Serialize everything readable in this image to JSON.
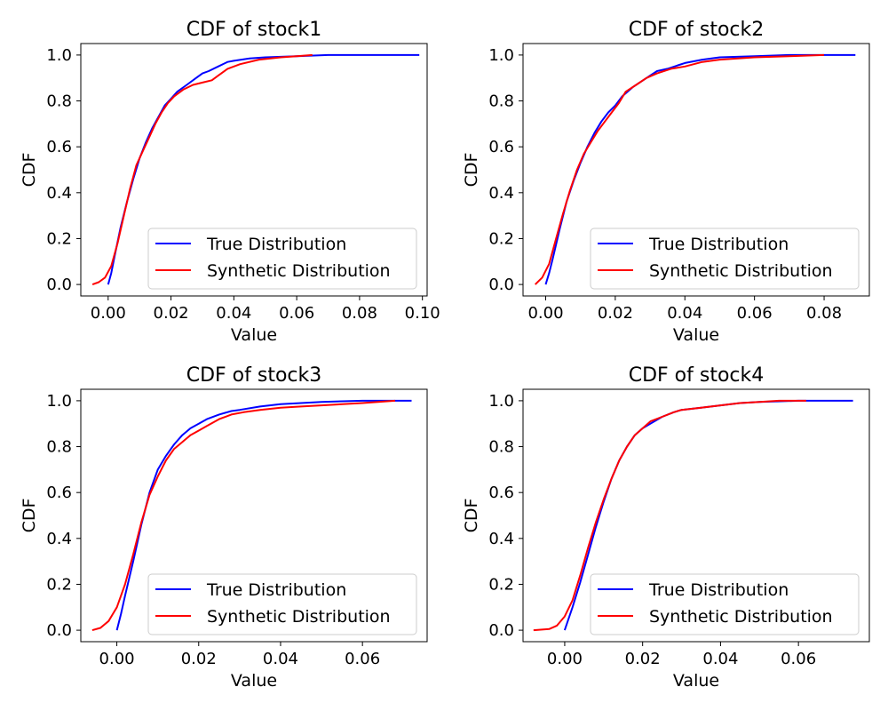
{
  "chart_data": [
    {
      "type": "line",
      "title": "CDF of stock1",
      "xlabel": "Value",
      "ylabel": "CDF",
      "xlim": [
        -0.0087,
        0.1015
      ],
      "ylim": [
        -0.05,
        1.05
      ],
      "xticks": [
        "0.00",
        "0.02",
        "0.04",
        "0.06",
        "0.08",
        "0.10"
      ],
      "xtick_values": [
        0.0,
        0.02,
        0.04,
        0.06,
        0.08,
        0.1
      ],
      "yticks": [
        "0.0",
        "0.2",
        "0.4",
        "0.6",
        "0.8",
        "1.0"
      ],
      "ytick_values": [
        0.0,
        0.2,
        0.4,
        0.6,
        0.8,
        1.0
      ],
      "legend": {
        "position": "lower right"
      },
      "grid": false,
      "series": [
        {
          "name": "True Distribution",
          "color": "#0000ff",
          "x": [
            0.0,
            0.001,
            0.002,
            0.004,
            0.006,
            0.008,
            0.01,
            0.012,
            0.014,
            0.016,
            0.018,
            0.02,
            0.022,
            0.025,
            0.028,
            0.03,
            0.032,
            0.035,
            0.038,
            0.04,
            0.045,
            0.05,
            0.06,
            0.07,
            0.08,
            0.09,
            0.099
          ],
          "y": [
            0.0,
            0.05,
            0.12,
            0.25,
            0.36,
            0.46,
            0.55,
            0.62,
            0.68,
            0.73,
            0.78,
            0.81,
            0.84,
            0.87,
            0.9,
            0.92,
            0.93,
            0.95,
            0.97,
            0.975,
            0.985,
            0.99,
            0.995,
            1.0,
            1.0,
            1.0,
            1.0
          ]
        },
        {
          "name": "Synthetic Distribution",
          "color": "#ff0000",
          "x": [
            -0.005,
            -0.003,
            -0.001,
            0.001,
            0.003,
            0.005,
            0.007,
            0.009,
            0.011,
            0.013,
            0.015,
            0.017,
            0.019,
            0.021,
            0.024,
            0.027,
            0.03,
            0.033,
            0.035,
            0.038,
            0.042,
            0.048,
            0.055,
            0.06,
            0.065
          ],
          "y": [
            0.0,
            0.01,
            0.03,
            0.08,
            0.18,
            0.3,
            0.42,
            0.52,
            0.58,
            0.64,
            0.7,
            0.75,
            0.79,
            0.82,
            0.85,
            0.87,
            0.88,
            0.89,
            0.91,
            0.94,
            0.96,
            0.98,
            0.99,
            0.995,
            1.0
          ]
        }
      ]
    },
    {
      "type": "line",
      "title": "CDF of stock2",
      "xlabel": "Value",
      "ylabel": "CDF",
      "xlim": [
        -0.0065,
        0.093
      ],
      "ylim": [
        -0.05,
        1.05
      ],
      "xticks": [
        "0.00",
        "0.02",
        "0.04",
        "0.06",
        "0.08"
      ],
      "xtick_values": [
        0.0,
        0.02,
        0.04,
        0.06,
        0.08
      ],
      "yticks": [
        "0.0",
        "0.2",
        "0.4",
        "0.6",
        "0.8",
        "1.0"
      ],
      "ytick_values": [
        0.0,
        0.2,
        0.4,
        0.6,
        0.8,
        1.0
      ],
      "legend": {
        "position": "lower right"
      },
      "grid": false,
      "series": [
        {
          "name": "True Distribution",
          "color": "#0000ff",
          "x": [
            0.0,
            0.001,
            0.002,
            0.004,
            0.006,
            0.008,
            0.01,
            0.012,
            0.014,
            0.016,
            0.018,
            0.02,
            0.022,
            0.025,
            0.028,
            0.03,
            0.032,
            0.035,
            0.038,
            0.04,
            0.045,
            0.05,
            0.06,
            0.07,
            0.08,
            0.089
          ],
          "y": [
            0.0,
            0.05,
            0.11,
            0.24,
            0.36,
            0.45,
            0.53,
            0.6,
            0.66,
            0.71,
            0.75,
            0.78,
            0.82,
            0.86,
            0.89,
            0.91,
            0.93,
            0.94,
            0.955,
            0.965,
            0.98,
            0.99,
            0.995,
            1.0,
            1.0,
            1.0
          ]
        },
        {
          "name": "Synthetic Distribution",
          "color": "#ff0000",
          "x": [
            -0.003,
            -0.001,
            0.001,
            0.003,
            0.005,
            0.007,
            0.009,
            0.011,
            0.013,
            0.015,
            0.017,
            0.019,
            0.021,
            0.023,
            0.026,
            0.029,
            0.032,
            0.036,
            0.04,
            0.045,
            0.05,
            0.06,
            0.07,
            0.08
          ],
          "y": [
            0.0,
            0.03,
            0.09,
            0.2,
            0.31,
            0.41,
            0.5,
            0.57,
            0.62,
            0.67,
            0.71,
            0.75,
            0.79,
            0.84,
            0.87,
            0.9,
            0.92,
            0.94,
            0.95,
            0.97,
            0.98,
            0.99,
            0.995,
            1.0
          ]
        }
      ]
    },
    {
      "type": "line",
      "title": "CDF of stock3",
      "xlabel": "Value",
      "ylabel": "CDF",
      "xlim": [
        -0.0088,
        0.0758
      ],
      "ylim": [
        -0.05,
        1.05
      ],
      "xticks": [
        "0.00",
        "0.02",
        "0.04",
        "0.06"
      ],
      "xtick_values": [
        0.0,
        0.02,
        0.04,
        0.06
      ],
      "yticks": [
        "0.0",
        "0.2",
        "0.4",
        "0.6",
        "0.8",
        "1.0"
      ],
      "ytick_values": [
        0.0,
        0.2,
        0.4,
        0.6,
        0.8,
        1.0
      ],
      "legend": {
        "position": "lower right"
      },
      "grid": false,
      "series": [
        {
          "name": "True Distribution",
          "color": "#0000ff",
          "x": [
            0.0,
            0.001,
            0.002,
            0.004,
            0.006,
            0.008,
            0.01,
            0.012,
            0.014,
            0.016,
            0.018,
            0.02,
            0.022,
            0.025,
            0.028,
            0.03,
            0.035,
            0.04,
            0.045,
            0.05,
            0.06,
            0.072
          ],
          "y": [
            0.0,
            0.07,
            0.15,
            0.3,
            0.46,
            0.6,
            0.7,
            0.76,
            0.81,
            0.85,
            0.88,
            0.9,
            0.92,
            0.94,
            0.955,
            0.96,
            0.975,
            0.985,
            0.99,
            0.995,
            1.0,
            1.0
          ]
        },
        {
          "name": "Synthetic Distribution",
          "color": "#ff0000",
          "x": [
            -0.006,
            -0.004,
            -0.002,
            0.0,
            0.002,
            0.004,
            0.006,
            0.008,
            0.01,
            0.012,
            0.014,
            0.016,
            0.018,
            0.02,
            0.022,
            0.025,
            0.028,
            0.031,
            0.035,
            0.04,
            0.045,
            0.05,
            0.06,
            0.068
          ],
          "y": [
            0.0,
            0.01,
            0.04,
            0.1,
            0.2,
            0.33,
            0.47,
            0.59,
            0.67,
            0.74,
            0.79,
            0.82,
            0.85,
            0.87,
            0.89,
            0.92,
            0.94,
            0.95,
            0.96,
            0.97,
            0.975,
            0.98,
            0.99,
            1.0
          ]
        }
      ]
    },
    {
      "type": "line",
      "title": "CDF of stock4",
      "xlabel": "Value",
      "ylabel": "CDF",
      "xlim": [
        -0.0107,
        0.0782
      ],
      "ylim": [
        -0.05,
        1.05
      ],
      "xticks": [
        "0.00",
        "0.02",
        "0.04",
        "0.06"
      ],
      "xtick_values": [
        0.0,
        0.02,
        0.04,
        0.06
      ],
      "yticks": [
        "0.0",
        "0.2",
        "0.4",
        "0.6",
        "0.8",
        "1.0"
      ],
      "ytick_values": [
        0.0,
        0.2,
        0.4,
        0.6,
        0.8,
        1.0
      ],
      "legend": {
        "position": "lower right"
      },
      "grid": false,
      "series": [
        {
          "name": "True Distribution",
          "color": "#0000ff",
          "x": [
            0.0,
            0.001,
            0.002,
            0.004,
            0.006,
            0.008,
            0.01,
            0.012,
            0.014,
            0.016,
            0.018,
            0.02,
            0.022,
            0.025,
            0.028,
            0.03,
            0.035,
            0.04,
            0.045,
            0.05,
            0.06,
            0.074
          ],
          "y": [
            0.0,
            0.05,
            0.1,
            0.21,
            0.33,
            0.45,
            0.56,
            0.66,
            0.74,
            0.8,
            0.85,
            0.88,
            0.9,
            0.93,
            0.95,
            0.96,
            0.97,
            0.98,
            0.99,
            0.995,
            1.0,
            1.0
          ]
        },
        {
          "name": "Synthetic Distribution",
          "color": "#ff0000",
          "x": [
            -0.008,
            -0.004,
            -0.002,
            0.0,
            0.002,
            0.004,
            0.006,
            0.008,
            0.01,
            0.012,
            0.014,
            0.016,
            0.018,
            0.02,
            0.022,
            0.025,
            0.028,
            0.03,
            0.035,
            0.04,
            0.045,
            0.05,
            0.055,
            0.062
          ],
          "y": [
            0.0,
            0.005,
            0.02,
            0.06,
            0.13,
            0.24,
            0.36,
            0.47,
            0.57,
            0.66,
            0.74,
            0.8,
            0.85,
            0.88,
            0.91,
            0.93,
            0.95,
            0.96,
            0.97,
            0.98,
            0.99,
            0.995,
            1.0,
            1.0
          ]
        }
      ]
    }
  ]
}
